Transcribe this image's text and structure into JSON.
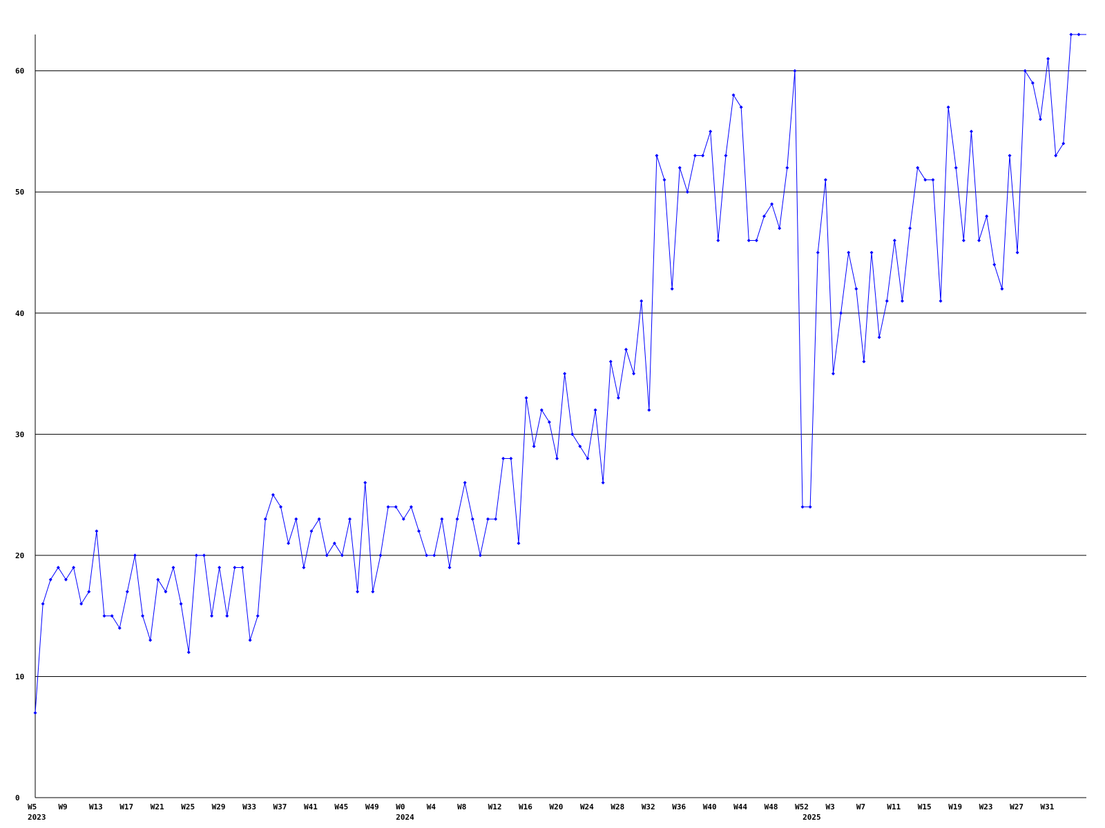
{
  "chart_data": {
    "type": "line",
    "categories": [
      "W5",
      null,
      null,
      null,
      "W9",
      null,
      null,
      null,
      "W13",
      null,
      null,
      null,
      "W17",
      null,
      null,
      null,
      "W21",
      null,
      null,
      null,
      "W25",
      null,
      null,
      null,
      "W29",
      null,
      null,
      null,
      "W33",
      null,
      null,
      null,
      "W37",
      null,
      null,
      null,
      "W41",
      null,
      null,
      null,
      "W45",
      null,
      null,
      null,
      "W49",
      null,
      null,
      null,
      "W0",
      null,
      null,
      null,
      "W4",
      null,
      null,
      null,
      "W8",
      null,
      null,
      null,
      "W12",
      null,
      null,
      null,
      "W16",
      null,
      null,
      null,
      "W20",
      null,
      null,
      null,
      "W24",
      null,
      null,
      null,
      "W28",
      null,
      null,
      null,
      "W32",
      null,
      null,
      null,
      "W36",
      null,
      null,
      null,
      "W40",
      null,
      null,
      null,
      "W44",
      null,
      null,
      null,
      "W48",
      null,
      null,
      null,
      "W52",
      null,
      null,
      null,
      "W3",
      null,
      null,
      null,
      "W7",
      null,
      null,
      null,
      "W11",
      null,
      null,
      null,
      "W15",
      null,
      null,
      null,
      "W19",
      null,
      null,
      null,
      "W23",
      null,
      null,
      null,
      "W27",
      null,
      null,
      null,
      "W31",
      null,
      null,
      null,
      null
    ],
    "years": [
      "2023",
      null,
      null,
      null,
      null,
      null,
      null,
      null,
      null,
      null,
      null,
      null,
      null,
      null,
      null,
      null,
      null,
      null,
      null,
      null,
      null,
      null,
      null,
      null,
      null,
      null,
      null,
      null,
      null,
      null,
      null,
      null,
      null,
      null,
      null,
      null,
      null,
      null,
      null,
      null,
      null,
      null,
      null,
      null,
      null,
      null,
      null,
      null,
      "2024",
      null,
      null,
      null,
      null,
      null,
      null,
      null,
      null,
      null,
      null,
      null,
      null,
      null,
      null,
      null,
      null,
      null,
      null,
      null,
      null,
      null,
      null,
      null,
      null,
      null,
      null,
      null,
      null,
      null,
      null,
      null,
      null,
      null,
      null,
      null,
      null,
      null,
      null,
      null,
      null,
      null,
      null,
      null,
      null,
      null,
      null,
      null,
      null,
      null,
      null,
      null,
      null,
      "2025",
      null,
      null,
      null,
      null,
      null,
      null,
      null,
      null,
      null,
      null,
      null,
      null,
      null,
      null,
      null,
      null,
      null,
      null,
      null,
      null,
      null,
      null,
      null,
      null,
      null,
      null,
      null,
      null,
      null,
      null,
      null,
      null,
      null,
      null,
      null
    ],
    "values": [
      7,
      16,
      18,
      19,
      18,
      19,
      16,
      17,
      22,
      15,
      15,
      14,
      17,
      20,
      15,
      13,
      18,
      17,
      19,
      16,
      12,
      20,
      20,
      15,
      19,
      15,
      19,
      19,
      13,
      15,
      23,
      25,
      24,
      21,
      23,
      19,
      22,
      23,
      20,
      21,
      20,
      23,
      17,
      26,
      17,
      20,
      24,
      24,
      23,
      24,
      22,
      20,
      20,
      23,
      19,
      23,
      26,
      23,
      20,
      23,
      23,
      28,
      28,
      21,
      33,
      29,
      32,
      31,
      28,
      35,
      30,
      29,
      28,
      32,
      26,
      36,
      33,
      37,
      35,
      41,
      32,
      53,
      51,
      42,
      52,
      50,
      53,
      53,
      55,
      46,
      53,
      58,
      57,
      46,
      46,
      48,
      49,
      47,
      52,
      60,
      24,
      24,
      45,
      51,
      35,
      40,
      45,
      42,
      36,
      45,
      38,
      41,
      46,
      41,
      47,
      52,
      51,
      51,
      41,
      57,
      52,
      46,
      55,
      46,
      48,
      44,
      42,
      53,
      45,
      60,
      59,
      56,
      61,
      53,
      54,
      63,
      63
    ],
    "color": "#0000ff",
    "ylim": [
      0,
      63
    ],
    "yticks": [
      0,
      10,
      20,
      30,
      40,
      50,
      60
    ],
    "grid": true
  }
}
